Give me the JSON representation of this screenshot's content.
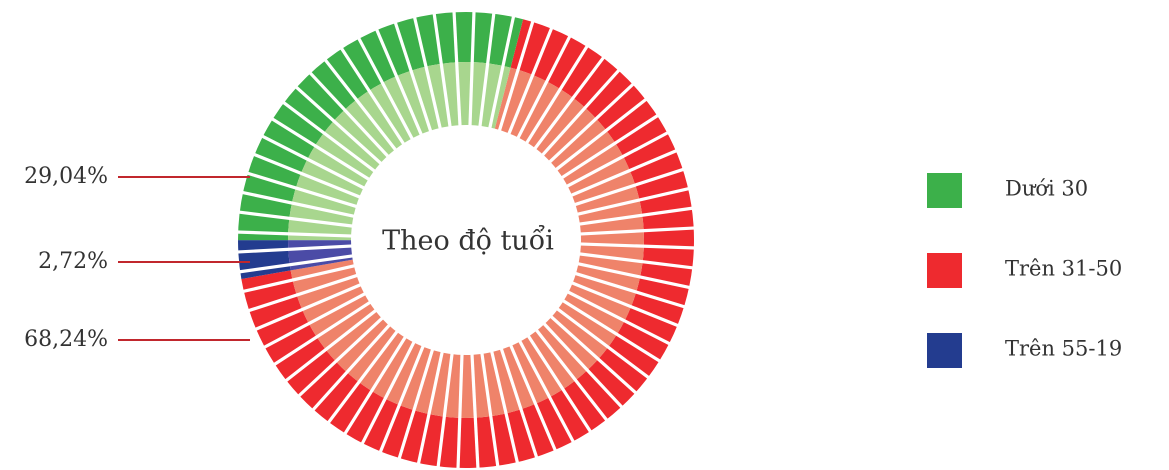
{
  "chart_data": {
    "type": "donut",
    "center_label": "Theo độ tuổi",
    "categories": [
      "Dưới 30",
      "Trên 31-50",
      "Trên 55-19"
    ],
    "values": [
      29.04,
      68.24,
      2.72
    ],
    "value_labels": [
      "29,04%",
      "68,24%",
      "2,72%"
    ],
    "colors": [
      "#3cb04a",
      "#ee2a2f",
      "#233c8f"
    ],
    "legend": "right"
  }
}
